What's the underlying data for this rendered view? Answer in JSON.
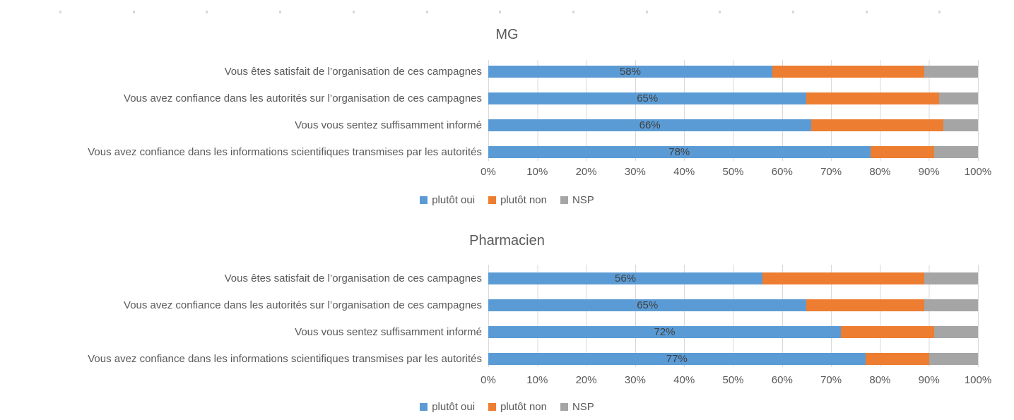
{
  "page": {
    "background": "#FFFFFF",
    "top_ruler": {
      "tick_color": "#D9D9D9",
      "tick_count": 13
    }
  },
  "colors": {
    "plutot_oui": "#5B9BD5",
    "plutot_non": "#ED7D31",
    "nsp": "#A5A5A5",
    "gridline": "#D9D9D9",
    "text": "#595959",
    "data_label": "#404040"
  },
  "chart_data": [
    {
      "type": "bar",
      "orientation": "horizontal",
      "stacked": true,
      "title": "MG",
      "categories": [
        "Vous êtes satisfait de l’organisation de ces campagnes",
        "Vous avez confiance dans les autorités sur l’organisation de ces campagnes",
        "Vous vous sentez suffisamment informé",
        "Vous avez confiance dans les informations scientifiques transmises par les autorités"
      ],
      "series": [
        {
          "name": "plutôt oui",
          "color": "#5B9BD5",
          "values": [
            58,
            65,
            66,
            78
          ]
        },
        {
          "name": "plutôt non",
          "color": "#ED7D31",
          "values": [
            31,
            27,
            27,
            13
          ]
        },
        {
          "name": "NSP",
          "color": "#A5A5A5",
          "values": [
            11,
            8,
            7,
            9
          ]
        }
      ],
      "data_labels": [
        "58%",
        "65%",
        "66%",
        "78%"
      ],
      "xlim": [
        0,
        100
      ],
      "x_tick_labels": [
        "0%",
        "10%",
        "20%",
        "30%",
        "40%",
        "50%",
        "60%",
        "70%",
        "80%",
        "90%",
        "100%"
      ],
      "grid": "vertical",
      "legend_position": "bottom"
    },
    {
      "type": "bar",
      "orientation": "horizontal",
      "stacked": true,
      "title": "Pharmacien",
      "categories": [
        "Vous êtes satisfait de l’organisation de ces campagnes",
        "Vous avez confiance dans les autorités sur l’organisation de ces campagnes",
        "Vous vous sentez suffisamment informé",
        "Vous avez confiance dans les informations scientifiques transmises par les autorités"
      ],
      "series": [
        {
          "name": "plutôt oui",
          "color": "#5B9BD5",
          "values": [
            56,
            65,
            72,
            77
          ]
        },
        {
          "name": "plutôt non",
          "color": "#ED7D31",
          "values": [
            33,
            24,
            19,
            13
          ]
        },
        {
          "name": "NSP",
          "color": "#A5A5A5",
          "values": [
            11,
            11,
            9,
            10
          ]
        }
      ],
      "data_labels": [
        "56%",
        "65%",
        "72%",
        "77%"
      ],
      "xlim": [
        0,
        100
      ],
      "x_tick_labels": [
        "0%",
        "10%",
        "20%",
        "30%",
        "40%",
        "50%",
        "60%",
        "70%",
        "80%",
        "90%",
        "100%"
      ],
      "grid": "vertical",
      "legend_position": "bottom"
    }
  ]
}
